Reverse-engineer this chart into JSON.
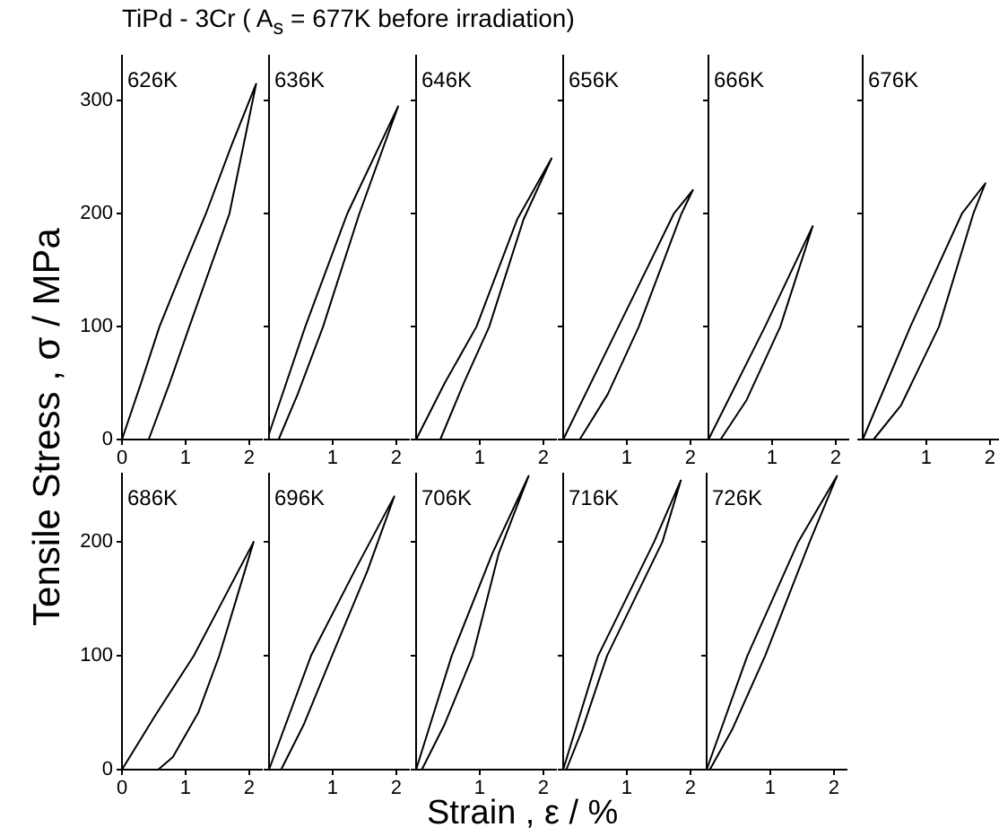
{
  "chart_data": [
    {
      "type": "line",
      "title": "626K",
      "annotations": [
        "TiPd - 3Cr ( A$_{s}$ = 677K before irradiation)"
      ],
      "ylabel": "Tensile Stress , σ / MPa",
      "color": "#000000",
      "x": [
        0,
        0.3,
        0.59,
        0.95,
        1.32,
        1.72,
        2.11,
        1.69,
        1.06,
        0.75,
        0.42
      ],
      "values": [
        0,
        50,
        100,
        150,
        200,
        260,
        315,
        200,
        100,
        50,
        0
      ],
      "xlim": [
        0,
        2.2
      ],
      "xticks": [
        0,
        1,
        2
      ],
      "ylim": [
        0,
        340
      ],
      "yticks": [
        0,
        100,
        200,
        300
      ]
    },
    {
      "type": "line",
      "title": "636K",
      "color": "#000000",
      "x": [
        0,
        0.57,
        1.23,
        2.03,
        1.42,
        0.85,
        0.45,
        0.15
      ],
      "values": [
        5,
        100,
        200,
        295,
        200,
        100,
        40,
        0
      ],
      "xlim": [
        0,
        2.2
      ],
      "xticks": [
        1,
        2
      ],
      "ylim": [
        0,
        340
      ],
      "yticks": [
        0,
        100,
        200,
        300
      ],
      "tick_labels": "x"
    },
    {
      "type": "line",
      "title": "646K",
      "color": "#000000",
      "x": [
        0,
        0.45,
        0.95,
        1.59,
        2.13,
        1.69,
        1.15,
        0.75,
        0.38
      ],
      "values": [
        0,
        50,
        100,
        195,
        249,
        195,
        100,
        50,
        0
      ],
      "xlim": [
        0,
        2.2
      ],
      "xticks": [
        1,
        2
      ],
      "ylim": [
        0,
        340
      ],
      "yticks": [
        0,
        100,
        200,
        300
      ],
      "tick_labels": "x"
    },
    {
      "type": "line",
      "title": "656K",
      "color": "#000000",
      "x": [
        0,
        0.87,
        1.74,
        2.04,
        1.86,
        1.19,
        0.7,
        0.26
      ],
      "values": [
        0,
        100,
        200,
        221,
        200,
        100,
        40,
        0
      ],
      "xlim": [
        0,
        2.2
      ],
      "xticks": [
        1,
        2
      ],
      "ylim": [
        0,
        340
      ],
      "yticks": [
        0,
        100,
        200,
        300
      ],
      "tick_labels": "x"
    },
    {
      "type": "line",
      "title": "666K",
      "color": "#000000",
      "x": [
        0,
        0.89,
        1.64,
        1.13,
        0.6,
        0.19
      ],
      "values": [
        0,
        100,
        189,
        100,
        35,
        0
      ],
      "xlim": [
        0,
        2.2
      ],
      "xticks": [
        1,
        2
      ],
      "ylim": [
        0,
        340
      ],
      "yticks": [
        0,
        100,
        200,
        300
      ],
      "tick_labels": "x"
    },
    {
      "type": "line",
      "title": "676K",
      "color": "#000000",
      "x": [
        0,
        0.75,
        1.56,
        1.93,
        1.74,
        1.2,
        0.6,
        0.17
      ],
      "values": [
        0,
        100,
        200,
        227,
        200,
        100,
        30,
        0
      ],
      "xlim": [
        0,
        2.2
      ],
      "xticks": [
        1,
        2
      ],
      "ylim": [
        0,
        340
      ],
      "yticks": [
        0,
        100,
        200,
        300
      ],
      "tick_labels": "x"
    },
    {
      "type": "line",
      "title": "686K",
      "color": "#000000",
      "x": [
        0,
        0.54,
        1.13,
        1.6,
        2.07,
        1.8,
        1.53,
        1.2,
        0.8,
        0.57
      ],
      "values": [
        0,
        49,
        100,
        150,
        200,
        150,
        100,
        50,
        11,
        0
      ],
      "xlim": [
        0,
        2.2
      ],
      "xticks": [
        0,
        1,
        2
      ],
      "ylim": [
        0,
        260
      ],
      "yticks": [
        0,
        100,
        200
      ]
    },
    {
      "type": "line",
      "title": "696K",
      "color": "#000000",
      "x": [
        0,
        0.66,
        1.35,
        1.97,
        1.55,
        0.99,
        0.55,
        0.19
      ],
      "values": [
        0,
        100,
        175,
        240,
        175,
        100,
        40,
        0
      ],
      "xlim": [
        0,
        2.2
      ],
      "xticks": [
        1,
        2
      ],
      "ylim": [
        0,
        260
      ],
      "yticks": [
        0,
        100,
        200
      ],
      "tick_labels": "x"
    },
    {
      "type": "line",
      "title": "706K",
      "xlabel": "Strain , ε / %",
      "color": "#000000",
      "x": [
        0,
        0.56,
        1.2,
        1.77,
        1.3,
        0.89,
        0.45,
        0.09
      ],
      "values": [
        0,
        100,
        190,
        258,
        190,
        100,
        40,
        0
      ],
      "xlim": [
        0,
        2.2
      ],
      "xticks": [
        1,
        2
      ],
      "ylim": [
        0,
        260
      ],
      "yticks": [
        0,
        100,
        200
      ],
      "tick_labels": "x"
    },
    {
      "type": "line",
      "title": "716K",
      "color": "#000000",
      "x": [
        0,
        0.55,
        1.43,
        1.85,
        1.56,
        0.69,
        0.3,
        0.05
      ],
      "values": [
        0,
        100,
        200,
        254,
        200,
        100,
        35,
        0
      ],
      "xlim": [
        0,
        2.2
      ],
      "xticks": [
        1,
        2
      ],
      "ylim": [
        0,
        260
      ],
      "yticks": [
        0,
        100,
        200
      ],
      "tick_labels": "x"
    },
    {
      "type": "line",
      "title": "726K",
      "color": "#000000",
      "x": [
        0,
        0.64,
        1.44,
        2.05,
        1.62,
        0.92,
        0.4,
        0.05
      ],
      "values": [
        0,
        100,
        200,
        258,
        200,
        100,
        35,
        0
      ],
      "xlim": [
        0,
        2.2
      ],
      "xticks": [
        1,
        2
      ],
      "ylim": [
        0,
        260
      ],
      "yticks": [
        0,
        100,
        200
      ],
      "tick_labels": "x"
    }
  ]
}
